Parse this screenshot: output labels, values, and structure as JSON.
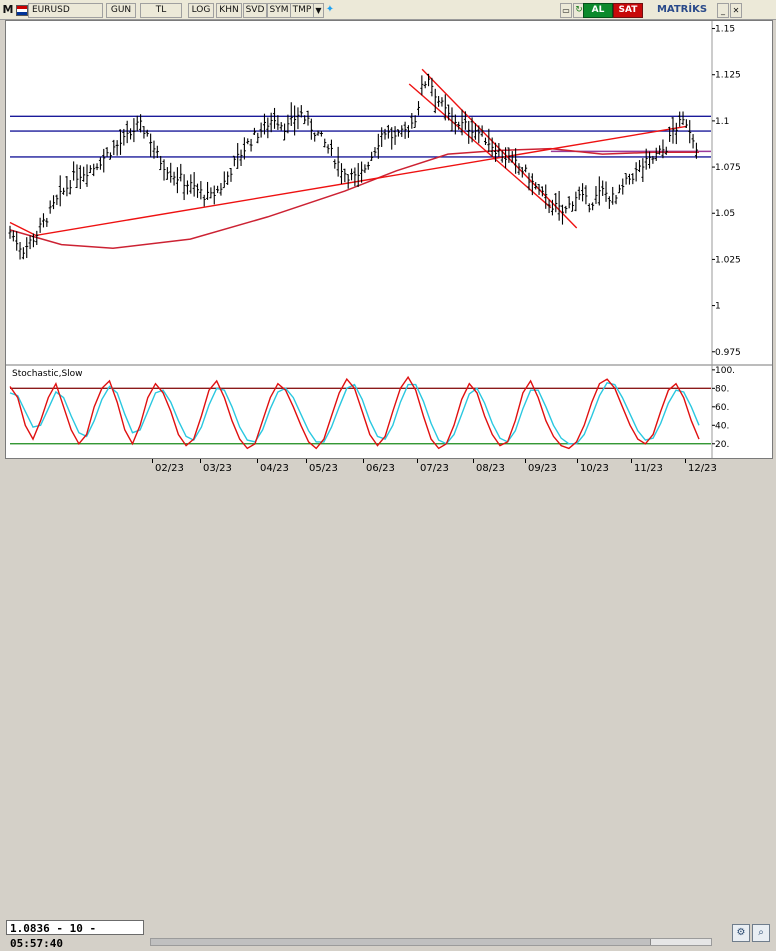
{
  "toolbar": {
    "m_label": "M",
    "symbol": "EURUSD",
    "period": "GUN",
    "currency": "TL",
    "log": "LOG",
    "khn": "KHN",
    "svd": "SVD",
    "sym": "SYM",
    "tmp": "TMP",
    "buy": "AL",
    "sell": "SAT",
    "brand": "MATRİKS"
  },
  "colors": {
    "price_bars": "#000000",
    "trend_red": "#ee1111",
    "moving_avg": "#cc2233",
    "horizontal_levels": "#1a1a9a",
    "stoch_k": "#e01010",
    "stoch_d": "#2ac8e0",
    "stoch_upper": "#8b1a1a",
    "stoch_lower": "#1a8a1a"
  },
  "cursor_readout": "1.0836 - 10 - 05:57:40",
  "chart_data": [
    {
      "type": "ohlc",
      "symbol": "EURUSD",
      "y_ticks": [
        "1.15",
        "1.125",
        "1.1",
        "1.075",
        "1.05",
        "1.025",
        "1",
        "0.975"
      ],
      "ylim": [
        0.97,
        1.153
      ],
      "x_labels": [
        "02/23",
        "03/23",
        "04/23",
        "05/23",
        "06/23",
        "07/23",
        "08/23",
        "09/23",
        "10/23",
        "11/23",
        "12/23"
      ],
      "price_path": [
        [
          0,
          1.04
        ],
        [
          10,
          1.03
        ],
        [
          20,
          1.038
        ],
        [
          35,
          1.055
        ],
        [
          50,
          1.07
        ],
        [
          65,
          1.075
        ],
        [
          80,
          1.085
        ],
        [
          90,
          1.09
        ],
        [
          100,
          1.098
        ],
        [
          108,
          1.092
        ],
        [
          115,
          1.08
        ],
        [
          125,
          1.072
        ],
        [
          140,
          1.065
        ],
        [
          155,
          1.058
        ],
        [
          165,
          1.065
        ],
        [
          175,
          1.078
        ],
        [
          185,
          1.088
        ],
        [
          195,
          1.095
        ],
        [
          205,
          1.102
        ],
        [
          215,
          1.096
        ],
        [
          225,
          1.105
        ],
        [
          232,
          1.098
        ],
        [
          240,
          1.092
        ],
        [
          250,
          1.082
        ],
        [
          260,
          1.072
        ],
        [
          270,
          1.068
        ],
        [
          280,
          1.08
        ],
        [
          290,
          1.095
        ],
        [
          300,
          1.09
        ],
        [
          308,
          1.095
        ],
        [
          315,
          1.102
        ],
        [
          320,
          1.118
        ],
        [
          325,
          1.124
        ],
        [
          332,
          1.112
        ],
        [
          340,
          1.103
        ],
        [
          350,
          1.098
        ],
        [
          360,
          1.096
        ],
        [
          370,
          1.09
        ],
        [
          380,
          1.083
        ],
        [
          390,
          1.078
        ],
        [
          400,
          1.072
        ],
        [
          410,
          1.062
        ],
        [
          420,
          1.055
        ],
        [
          430,
          1.05
        ],
        [
          440,
          1.06
        ],
        [
          450,
          1.055
        ],
        [
          460,
          1.062
        ],
        [
          470,
          1.057
        ],
        [
          480,
          1.068
        ],
        [
          490,
          1.075
        ],
        [
          500,
          1.08
        ],
        [
          510,
          1.086
        ],
        [
          515,
          1.095
        ],
        [
          520,
          1.098
        ],
        [
          525,
          1.1
        ],
        [
          530,
          1.092
        ],
        [
          535,
          1.084
        ]
      ],
      "levels": [
        1.1025,
        1.0945,
        1.0805,
        1.0835
      ],
      "trend_lines": [
        [
          [
            0,
            1.045
          ],
          [
            20,
            1.038
          ],
          [
            525,
            1.097
          ]
        ],
        [
          [
            320,
            1.128
          ],
          [
            440,
            1.042
          ]
        ],
        [
          [
            310,
            1.12
          ],
          [
            420,
            1.053
          ]
        ]
      ],
      "moving_average": [
        [
          0,
          1.041
        ],
        [
          40,
          1.033
        ],
        [
          80,
          1.031
        ],
        [
          140,
          1.036
        ],
        [
          200,
          1.048
        ],
        [
          260,
          1.062
        ],
        [
          300,
          1.073
        ],
        [
          340,
          1.082
        ],
        [
          380,
          1.084
        ],
        [
          420,
          1.085
        ],
        [
          460,
          1.082
        ],
        [
          500,
          1.083
        ],
        [
          535,
          1.083
        ]
      ]
    },
    {
      "type": "line",
      "title": "Stochastic,Slow",
      "y_ticks": [
        "100.",
        "80.",
        "60.",
        "40.",
        "20."
      ],
      "ylim": [
        10,
        102
      ],
      "levels": [
        80,
        20
      ],
      "series": [
        {
          "values": [
            82,
            70,
            40,
            25,
            45,
            70,
            85,
            60,
            35,
            20,
            30,
            60,
            80,
            88,
            65,
            35,
            20,
            40,
            70,
            85,
            75,
            55,
            30,
            18,
            25,
            50,
            78,
            88,
            70,
            45,
            25,
            15,
            20,
            45,
            70,
            85,
            78,
            60,
            40,
            22,
            15,
            25,
            50,
            75,
            90,
            80,
            55,
            30,
            18,
            28,
            55,
            80,
            92,
            78,
            50,
            25,
            15,
            20,
            40,
            68,
            85,
            75,
            50,
            30,
            18,
            22,
            45,
            75,
            88,
            70,
            45,
            28,
            18,
            15,
            22,
            40,
            65,
            85,
            90,
            80,
            60,
            40,
            25,
            20,
            30,
            55,
            78,
            85,
            70,
            45,
            25
          ]
        },
        {
          "values": [
            75,
            72,
            55,
            38,
            40,
            58,
            76,
            70,
            50,
            32,
            28,
            45,
            68,
            82,
            75,
            52,
            32,
            35,
            55,
            75,
            78,
            65,
            45,
            28,
            24,
            38,
            62,
            80,
            78,
            60,
            38,
            24,
            22,
            35,
            58,
            76,
            80,
            70,
            52,
            34,
            22,
            22,
            38,
            60,
            80,
            84,
            68,
            45,
            28,
            25,
            40,
            65,
            84,
            84,
            66,
            42,
            24,
            20,
            30,
            52,
            74,
            80,
            64,
            42,
            26,
            22,
            34,
            58,
            78,
            78,
            60,
            40,
            26,
            20,
            20,
            30,
            50,
            72,
            86,
            84,
            70,
            52,
            34,
            24,
            26,
            42,
            64,
            78,
            76,
            60,
            40
          ]
        }
      ]
    }
  ]
}
